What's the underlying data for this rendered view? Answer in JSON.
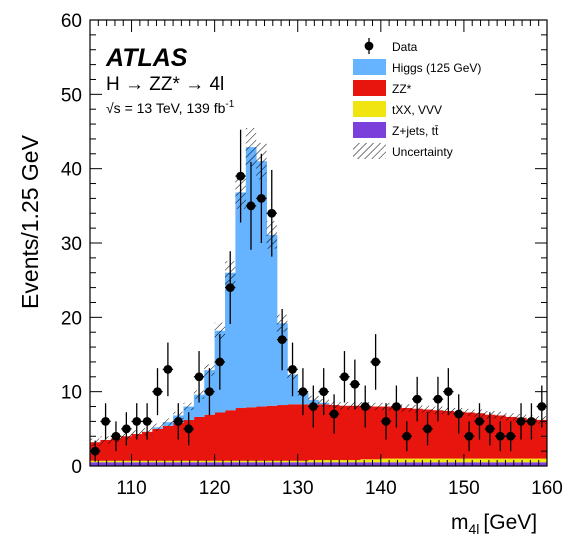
{
  "chart_data": {
    "type": "histogram",
    "experiment": "ATLAS",
    "process": "H → ZZ* → 4l",
    "energy_lumi": "√s = 13 TeV, 139 fb",
    "lumi_superscript": "-1",
    "xlabel": "m",
    "xlabel_sub": "4l",
    "xlabel_unit": "[GeV]",
    "ylabel": "Events/1.25 GeV",
    "xlim": [
      105,
      160
    ],
    "ylim": [
      0,
      60
    ],
    "x_ticks": [
      110,
      120,
      130,
      140,
      150,
      160
    ],
    "y_ticks": [
      0,
      10,
      20,
      30,
      40,
      50,
      60
    ],
    "bin_width": 1.25,
    "legend_position": "top-right",
    "legend": [
      {
        "label": "Data",
        "kind": "marker"
      },
      {
        "label": "Higgs (125 GeV)",
        "kind": "fill",
        "color": "#66b3ff"
      },
      {
        "label": "ZZ*",
        "kind": "fill",
        "color": "#e8150f"
      },
      {
        "label": "tXX, VVV",
        "kind": "fill",
        "color": "#f0e510"
      },
      {
        "label": "Z+jets, tt̄",
        "kind": "fill",
        "color": "#7b3fdc"
      },
      {
        "label": "Uncertainty",
        "kind": "hatch"
      }
    ],
    "colors": {
      "higgs": "#66b3ff",
      "zz": "#e8150f",
      "txx": "#f0e510",
      "zjets": "#7b3fdc",
      "data": "#000000"
    },
    "stack_series": {
      "zjets": [
        0.5,
        0.5,
        0.5,
        0.5,
        0.5,
        0.5,
        0.5,
        0.5,
        0.5,
        0.5,
        0.5,
        0.5,
        0.5,
        0.5,
        0.5,
        0.5,
        0.5,
        0.5,
        0.5,
        0.5,
        0.5,
        0.5,
        0.5,
        0.5,
        0.5,
        0.5,
        0.5,
        0.5,
        0.5,
        0.5,
        0.5,
        0.5,
        0.5,
        0.5,
        0.5,
        0.5,
        0.5,
        0.5,
        0.5,
        0.5,
        0.5,
        0.5,
        0.5,
        0.5
      ],
      "txx": [
        0.2,
        0.2,
        0.2,
        0.2,
        0.2,
        0.2,
        0.2,
        0.2,
        0.2,
        0.2,
        0.2,
        0.2,
        0.2,
        0.2,
        0.2,
        0.2,
        0.2,
        0.2,
        0.2,
        0.2,
        0.2,
        0.3,
        0.3,
        0.3,
        0.3,
        0.3,
        0.4,
        0.4,
        0.5,
        0.5,
        0.5,
        0.5,
        0.5,
        0.5,
        0.5,
        0.5,
        0.5,
        0.5,
        0.5,
        0.5,
        0.5,
        0.5,
        0.5,
        0.5
      ],
      "zz": [
        2.5,
        2.8,
        3.0,
        3.3,
        3.6,
        3.9,
        4.3,
        4.7,
        5.1,
        5.5,
        5.9,
        6.2,
        6.5,
        6.8,
        7.1,
        7.2,
        7.3,
        7.4,
        7.5,
        7.6,
        7.6,
        7.5,
        7.5,
        7.4,
        7.3,
        7.3,
        7.2,
        7.1,
        7.0,
        6.9,
        6.8,
        6.7,
        6.6,
        6.5,
        6.4,
        6.3,
        6.2,
        6.1,
        5.9,
        5.8,
        5.6,
        5.5,
        5.3,
        5.2
      ],
      "higgs": [
        0,
        0,
        0,
        0,
        0,
        0,
        0.2,
        0.5,
        1.0,
        1.8,
        3.0,
        6.0,
        11.0,
        18.5,
        29.0,
        35.0,
        33.0,
        23.0,
        11.0,
        4.0,
        1.5,
        0.6,
        0.2,
        0,
        0,
        0,
        0,
        0,
        0,
        0,
        0,
        0,
        0,
        0,
        0,
        0,
        0,
        0,
        0,
        0,
        0,
        0,
        0,
        0
      ]
    },
    "data_points": {
      "x": [
        105.625,
        106.875,
        108.125,
        109.375,
        110.625,
        111.875,
        113.125,
        114.375,
        115.625,
        116.875,
        118.125,
        119.375,
        120.625,
        121.875,
        123.125,
        124.375,
        125.625,
        126.875,
        128.125,
        129.375,
        130.625,
        131.875,
        133.125,
        134.375,
        135.625,
        136.875,
        138.125,
        139.375,
        140.625,
        141.875,
        143.125,
        144.375,
        145.625,
        146.875,
        148.125,
        149.375,
        150.625,
        151.875,
        153.125,
        154.375,
        155.625,
        156.875,
        158.125,
        159.375
      ],
      "y": [
        2,
        6,
        4,
        5,
        6,
        6,
        10,
        13,
        6,
        5,
        12,
        10,
        14,
        24,
        39,
        35,
        36,
        34,
        17,
        13,
        10,
        8,
        10,
        7,
        12,
        11,
        8,
        14,
        6,
        8,
        4,
        9,
        5,
        9,
        10,
        7,
        4,
        6,
        5,
        4,
        4,
        6,
        6,
        8
      ]
    }
  }
}
